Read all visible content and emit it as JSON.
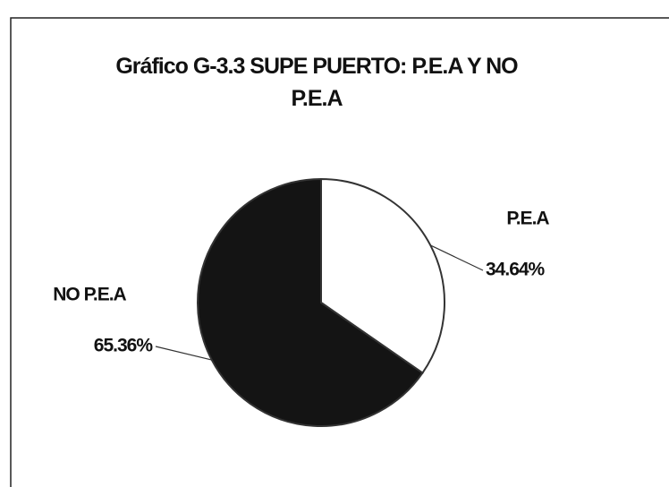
{
  "chart_data": {
    "type": "pie",
    "title": "Gráfico G-3.3 SUPE PUERTO: P.E.A Y NO P.E.A",
    "categories": [
      "P.E.A",
      "NO P.E.A"
    ],
    "values": [
      34.64,
      65.36
    ],
    "value_labels": [
      "34.64%",
      "65.36%"
    ],
    "colors": [
      "#ffffff",
      "#141414"
    ]
  }
}
